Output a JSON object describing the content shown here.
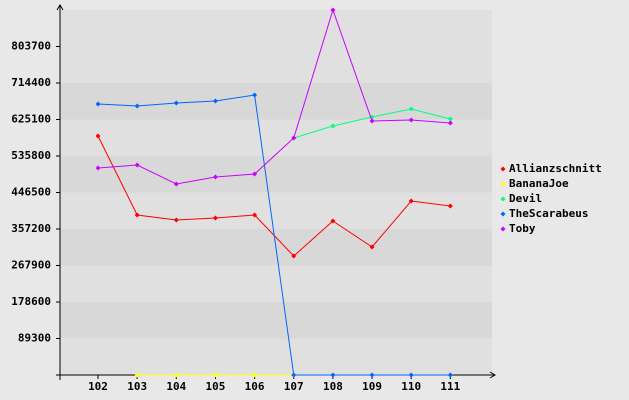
{
  "chart_data": {
    "type": "line",
    "categories": [
      "102",
      "103",
      "104",
      "105",
      "106",
      "107",
      "108",
      "109",
      "110",
      "111"
    ],
    "series": [
      {
        "name": "Allianzschnitt",
        "color": "#ff0000",
        "values": [
          584700,
          391500,
          379200,
          384100,
          391500,
          291100,
          376800,
          313200,
          425700,
          413500
        ]
      },
      {
        "name": "BananaJoe",
        "color": "#ffff00",
        "values": [
          null,
          0,
          0,
          0,
          0,
          0,
          null,
          null,
          null,
          null
        ]
      },
      {
        "name": "Devil",
        "color": "#00ff7f",
        "values": [
          null,
          null,
          null,
          null,
          null,
          579800,
          609200,
          631200,
          650800,
          626300
        ]
      },
      {
        "name": "TheScarabeus",
        "color": "#0066ff",
        "values": [
          663000,
          658100,
          665500,
          670400,
          685000,
          0,
          0,
          0,
          0,
          0
        ]
      },
      {
        "name": "Toby",
        "color": "#cc00ff",
        "values": [
          506400,
          513800,
          467300,
          484400,
          491800,
          579800,
          893000,
          621400,
          623900,
          616500
        ]
      }
    ],
    "ylim": [
      0,
      893000
    ],
    "yticks": [
      89300,
      178600,
      267900,
      357200,
      446500,
      535800,
      625100,
      714400,
      803700
    ],
    "grid": true,
    "legend": "right"
  }
}
